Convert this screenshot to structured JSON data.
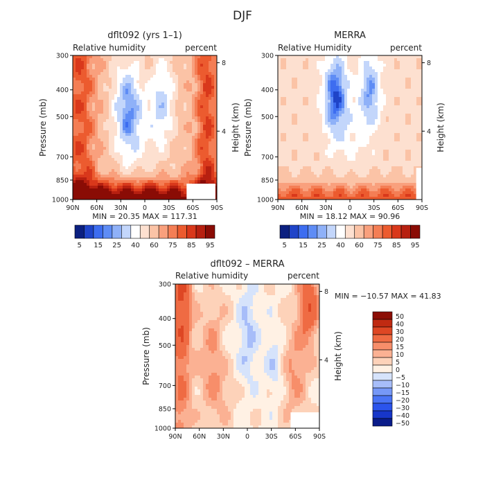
{
  "page_title": "DJF",
  "palettes": {
    "full": [
      "#0b2080",
      "#1f44c8",
      "#3d6df0",
      "#5e8cf5",
      "#8fb1f8",
      "#c3d6fb",
      "#ffffff",
      "#fde0d0",
      "#fbc3a6",
      "#f9a07d",
      "#f47e55",
      "#ec5b2f",
      "#d9381b",
      "#b72010",
      "#8a0c05"
    ],
    "diff": [
      "#0a1c8a",
      "#1736c9",
      "#2b54ec",
      "#4a74f5",
      "#7698f7",
      "#a7bdf9",
      "#d6e3fb",
      "#fff1e4",
      "#fdd2b9",
      "#fbb193",
      "#f78e6a",
      "#ef6b43",
      "#de4724",
      "#c02a12",
      "#8c0e05"
    ]
  },
  "colorbar_labels": {
    "full": [
      "5",
      "15",
      "25",
      "40",
      "60",
      "75",
      "85",
      "95"
    ],
    "diff": [
      "50",
      "40",
      "30",
      "20",
      "15",
      "10",
      "5",
      "0",
      "−5",
      "−10",
      "−15",
      "−20",
      "−30",
      "−40",
      "−50"
    ]
  },
  "chart_data": [
    {
      "type": "heatmap",
      "title": "dflt092 (yrs 1–1)",
      "left_label": "Relative humidity",
      "right_label": "percent",
      "xlabel": "",
      "ylabel": "Pressure (mb)",
      "right_axis_label": "Height (km)",
      "x_ticks": [
        "90N",
        "60N",
        "30N",
        "0",
        "30S",
        "60S",
        "90S"
      ],
      "y_ticks": [
        "300",
        "400",
        "500",
        "700",
        "850",
        "1000"
      ],
      "y_ticks_right": [
        "8",
        "4"
      ],
      "x_range": [
        "90N",
        "90S"
      ],
      "y_range": [
        300,
        1000
      ],
      "levels": [
        5,
        10,
        15,
        20,
        25,
        30,
        40,
        50,
        60,
        70,
        75,
        80,
        85,
        90,
        95
      ],
      "min_max_text": "MIN =  20.35   MAX = 117.31",
      "min": 20.35,
      "max": 117.31,
      "field": "model relative humidity"
    },
    {
      "type": "heatmap",
      "title": "MERRA",
      "left_label": "Relative Humidity",
      "right_label": "percent",
      "xlabel": "",
      "ylabel": "Pressure (mb)",
      "right_axis_label": "Height (km)",
      "x_ticks": [
        "90N",
        "60N",
        "30N",
        "0",
        "30S",
        "60S",
        "90S"
      ],
      "y_ticks": [
        "300",
        "400",
        "500",
        "700",
        "850",
        "1000"
      ],
      "y_ticks_right": [
        "8",
        "4"
      ],
      "x_range": [
        "90N",
        "90S"
      ],
      "y_range": [
        300,
        1000
      ],
      "levels": [
        5,
        10,
        15,
        20,
        25,
        30,
        40,
        50,
        60,
        70,
        75,
        80,
        85,
        90,
        95
      ],
      "min_max_text": "MIN =  18.12   MAX =  90.96",
      "min": 18.12,
      "max": 90.96,
      "field": "reanalysis relative humidity"
    },
    {
      "type": "heatmap",
      "title": "dflt092 – MERRA",
      "left_label": "Relative humidity",
      "right_label": "percent",
      "xlabel": "",
      "ylabel": "Pressure (mb)",
      "right_axis_label": "Height (km)",
      "x_ticks": [
        "90N",
        "60N",
        "30N",
        "0",
        "30S",
        "60S",
        "90S"
      ],
      "y_ticks": [
        "300",
        "400",
        "500",
        "700",
        "850",
        "1000"
      ],
      "y_ticks_right": [
        "8",
        "4"
      ],
      "x_range": [
        "90N",
        "90S"
      ],
      "y_range": [
        300,
        1000
      ],
      "levels": [
        -50,
        -40,
        -30,
        -20,
        -15,
        -10,
        -5,
        0,
        5,
        10,
        15,
        20,
        30,
        40,
        50
      ],
      "min_max_text": "MIN = −10.57   MAX =   41.83",
      "min": -10.57,
      "max": 41.83,
      "field": "difference model minus reanalysis"
    }
  ]
}
